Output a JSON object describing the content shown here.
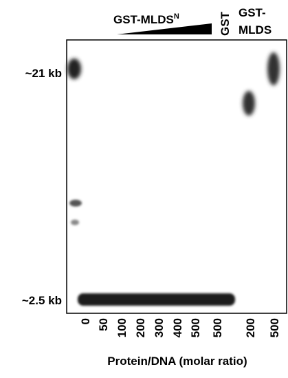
{
  "header": {
    "title": "GST-MLDS",
    "title_superscript": "N",
    "gst": "GST",
    "mlds_line1": "GST-",
    "mlds_line2": "MLDS"
  },
  "markers": [
    "~21 kb",
    "~2.5 kb"
  ],
  "lanes": [
    "0",
    "50",
    "100",
    "200",
    "300",
    "400",
    "500",
    "500",
    "200",
    "500"
  ],
  "x_label": "Protein/DNA (molar ratio)"
}
